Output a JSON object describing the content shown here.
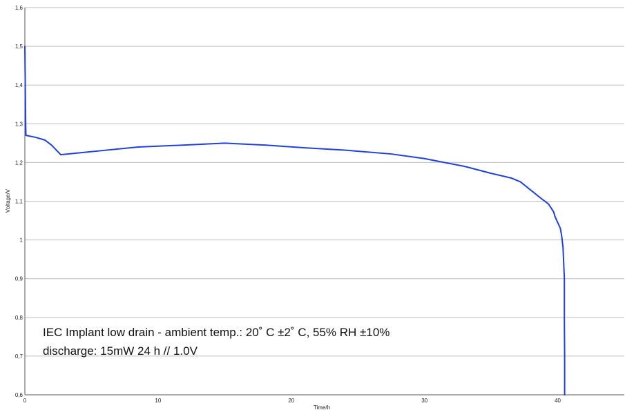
{
  "chart_data": {
    "type": "line",
    "title": "",
    "xlabel": "Time/h",
    "ylabel": "Voltage/V",
    "xlim": [
      0,
      45
    ],
    "ylim": [
      0.6,
      1.6
    ],
    "grid": true,
    "x_ticks": [
      {
        "value": 0,
        "label": "0"
      },
      {
        "value": 10,
        "label": "10"
      },
      {
        "value": 20,
        "label": "20"
      },
      {
        "value": 30,
        "label": "30"
      },
      {
        "value": 40,
        "label": "40"
      }
    ],
    "y_ticks": [
      {
        "value": 0.6,
        "label": "0,6"
      },
      {
        "value": 0.7,
        "label": "0,7"
      },
      {
        "value": 0.8,
        "label": "0,8"
      },
      {
        "value": 0.9,
        "label": "0,9"
      },
      {
        "value": 1.0,
        "label": "1"
      },
      {
        "value": 1.1,
        "label": "1,1"
      },
      {
        "value": 1.2,
        "label": "1,2"
      },
      {
        "value": 1.3,
        "label": "1,3"
      },
      {
        "value": 1.4,
        "label": "1,4"
      },
      {
        "value": 1.5,
        "label": "1,5"
      },
      {
        "value": 1.6,
        "label": "1,6"
      }
    ],
    "series": [
      {
        "color": "#1f3fe0",
        "points": [
          [
            0.0,
            1.5
          ],
          [
            0.03,
            1.4
          ],
          [
            0.06,
            1.3
          ],
          [
            0.08,
            1.27
          ],
          [
            0.8,
            1.265
          ],
          [
            1.5,
            1.258
          ],
          [
            2.0,
            1.245
          ],
          [
            2.7,
            1.22
          ],
          [
            5.0,
            1.228
          ],
          [
            8.5,
            1.24
          ],
          [
            12.0,
            1.245
          ],
          [
            15.0,
            1.25
          ],
          [
            18.0,
            1.245
          ],
          [
            21.0,
            1.238
          ],
          [
            24.0,
            1.232
          ],
          [
            27.5,
            1.222
          ],
          [
            30.0,
            1.21
          ],
          [
            33.0,
            1.19
          ],
          [
            35.0,
            1.172
          ],
          [
            36.5,
            1.16
          ],
          [
            37.2,
            1.15
          ],
          [
            38.0,
            1.128
          ],
          [
            38.8,
            1.106
          ],
          [
            39.3,
            1.093
          ],
          [
            39.5,
            1.083
          ],
          [
            39.7,
            1.072
          ],
          [
            39.8,
            1.06
          ],
          [
            40.0,
            1.045
          ],
          [
            40.2,
            1.03
          ],
          [
            40.3,
            1.01
          ],
          [
            40.4,
            0.98
          ],
          [
            40.45,
            0.94
          ],
          [
            40.5,
            0.9
          ],
          [
            40.5,
            0.8
          ],
          [
            40.52,
            0.7
          ],
          [
            40.52,
            0.6
          ]
        ]
      }
    ],
    "annotation": [
      "IEC Implant low drain - ambient temp.: 20˚ C ±2˚ C, 55% RH ±10%",
      "discharge: 15mW 24 h // 1.0V"
    ]
  }
}
